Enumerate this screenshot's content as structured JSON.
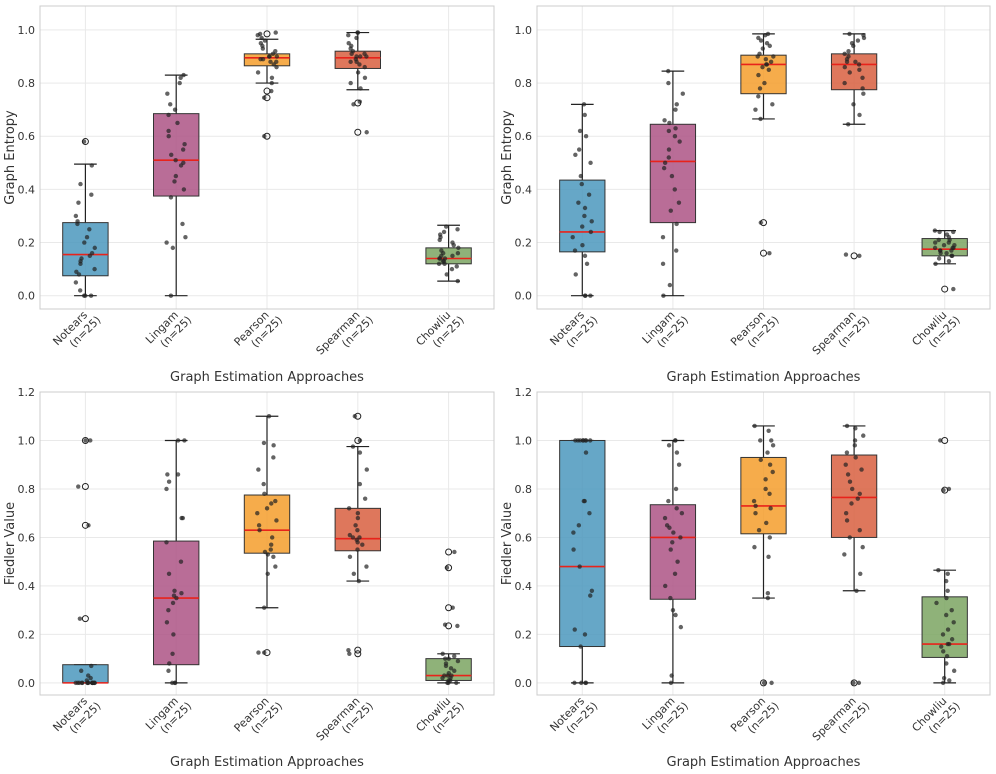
{
  "figure": {
    "colors": {
      "notears": "#4b98bd",
      "lingam": "#ad5485",
      "pearson": "#f59e2b",
      "spearman": "#d85f40",
      "chowliu": "#7ba561",
      "median": "#e8231b",
      "grid": "#e9e9e9",
      "frame": "#cccccc"
    }
  },
  "chart_data": [
    {
      "type": "box",
      "id": "top-left",
      "title": "",
      "xlabel": "Graph Estimation Approaches",
      "ylabel": "Graph Entropy",
      "ylim": [
        -0.05,
        1.09
      ],
      "yticks": [
        0.0,
        0.2,
        0.4,
        0.6,
        0.8,
        1.0
      ],
      "ytick_labels": [
        "0.0",
        "0.2",
        "0.4",
        "0.6",
        "0.8",
        "1.0"
      ],
      "categories": [
        {
          "name": "Notears",
          "n": "(n=25)",
          "q1": 0.075,
          "median": 0.155,
          "q3": 0.275,
          "whisker_low": 0.0,
          "whisker_high": 0.495,
          "outliers": [
            0.58
          ],
          "points": [
            0.0,
            0.0,
            0.02,
            0.05,
            0.08,
            0.09,
            0.1,
            0.12,
            0.13,
            0.14,
            0.15,
            0.16,
            0.18,
            0.2,
            0.22,
            0.25,
            0.27,
            0.28,
            0.3,
            0.35,
            0.38,
            0.42,
            0.49,
            0.0,
            0.58
          ]
        },
        {
          "name": "Lingam",
          "n": "(n=25)",
          "q1": 0.375,
          "median": 0.51,
          "q3": 0.685,
          "whisker_low": 0.0,
          "whisker_high": 0.83,
          "outliers": [],
          "points": [
            0.0,
            0.18,
            0.2,
            0.22,
            0.27,
            0.37,
            0.4,
            0.43,
            0.45,
            0.49,
            0.5,
            0.51,
            0.53,
            0.55,
            0.57,
            0.6,
            0.62,
            0.65,
            0.68,
            0.7,
            0.72,
            0.76,
            0.8,
            0.82,
            0.83
          ]
        },
        {
          "name": "Pearson",
          "n": "(n=25)",
          "q1": 0.865,
          "median": 0.895,
          "q3": 0.91,
          "whisker_low": 0.8,
          "whisker_high": 0.965,
          "outliers": [
            0.745,
            0.77,
            0.6,
            0.985
          ],
          "points": [
            0.6,
            0.745,
            0.77,
            0.8,
            0.82,
            0.84,
            0.86,
            0.87,
            0.88,
            0.88,
            0.89,
            0.89,
            0.9,
            0.9,
            0.9,
            0.91,
            0.92,
            0.93,
            0.94,
            0.95,
            0.96,
            0.97,
            0.98,
            0.985,
            0.99
          ]
        },
        {
          "name": "Spearman",
          "n": "(n=25)",
          "q1": 0.855,
          "median": 0.895,
          "q3": 0.92,
          "whisker_low": 0.775,
          "whisker_high": 0.99,
          "outliers": [
            0.725,
            0.615
          ],
          "points": [
            0.615,
            0.72,
            0.73,
            0.78,
            0.8,
            0.82,
            0.84,
            0.86,
            0.87,
            0.88,
            0.88,
            0.89,
            0.9,
            0.9,
            0.9,
            0.91,
            0.91,
            0.92,
            0.93,
            0.94,
            0.95,
            0.97,
            0.98,
            0.99,
            0.99
          ]
        },
        {
          "name": "Chowliu",
          "n": "(n=25)",
          "q1": 0.12,
          "median": 0.14,
          "q3": 0.18,
          "whisker_low": 0.055,
          "whisker_high": 0.265,
          "outliers": [],
          "points": [
            0.055,
            0.08,
            0.1,
            0.11,
            0.12,
            0.12,
            0.13,
            0.13,
            0.14,
            0.14,
            0.14,
            0.15,
            0.15,
            0.16,
            0.16,
            0.17,
            0.18,
            0.19,
            0.2,
            0.21,
            0.22,
            0.23,
            0.24,
            0.25,
            0.26
          ]
        }
      ]
    },
    {
      "type": "box",
      "id": "top-right",
      "title": "",
      "xlabel": "Graph Estimation Approaches",
      "ylabel": "Graph Entropy",
      "ylim": [
        -0.05,
        1.09
      ],
      "yticks": [
        0.0,
        0.2,
        0.4,
        0.6,
        0.8,
        1.0
      ],
      "ytick_labels": [
        "0.0",
        "0.2",
        "0.4",
        "0.6",
        "0.8",
        "1.0"
      ],
      "categories": [
        {
          "name": "Notears",
          "n": "(n=25)",
          "q1": 0.165,
          "median": 0.24,
          "q3": 0.435,
          "whisker_low": 0.0,
          "whisker_high": 0.72,
          "outliers": [],
          "points": [
            0.0,
            0.0,
            0.0,
            0.08,
            0.12,
            0.15,
            0.17,
            0.19,
            0.22,
            0.24,
            0.26,
            0.28,
            0.3,
            0.33,
            0.35,
            0.38,
            0.42,
            0.45,
            0.5,
            0.53,
            0.55,
            0.6,
            0.62,
            0.68,
            0.72
          ]
        },
        {
          "name": "Lingam",
          "n": "(n=25)",
          "q1": 0.275,
          "median": 0.505,
          "q3": 0.645,
          "whisker_low": 0.0,
          "whisker_high": 0.845,
          "outliers": [],
          "points": [
            0.0,
            0.04,
            0.12,
            0.17,
            0.22,
            0.27,
            0.32,
            0.35,
            0.4,
            0.45,
            0.48,
            0.5,
            0.52,
            0.55,
            0.58,
            0.6,
            0.62,
            0.63,
            0.65,
            0.66,
            0.7,
            0.72,
            0.76,
            0.8,
            0.845
          ]
        },
        {
          "name": "Pearson",
          "n": "(n=25)",
          "q1": 0.76,
          "median": 0.87,
          "q3": 0.905,
          "whisker_low": 0.665,
          "whisker_high": 0.985,
          "outliers": [
            0.275,
            0.16
          ],
          "points": [
            0.16,
            0.275,
            0.665,
            0.7,
            0.72,
            0.75,
            0.78,
            0.8,
            0.83,
            0.85,
            0.86,
            0.87,
            0.87,
            0.88,
            0.89,
            0.9,
            0.9,
            0.91,
            0.93,
            0.94,
            0.95,
            0.96,
            0.97,
            0.98,
            0.985
          ]
        },
        {
          "name": "Spearman",
          "n": "(n=25)",
          "q1": 0.775,
          "median": 0.87,
          "q3": 0.91,
          "whisker_low": 0.645,
          "whisker_high": 0.985,
          "outliers": [
            0.15
          ],
          "points": [
            0.15,
            0.155,
            0.645,
            0.68,
            0.72,
            0.76,
            0.78,
            0.8,
            0.82,
            0.84,
            0.85,
            0.86,
            0.87,
            0.88,
            0.88,
            0.89,
            0.9,
            0.91,
            0.92,
            0.94,
            0.95,
            0.96,
            0.97,
            0.98,
            0.985
          ]
        },
        {
          "name": "Chowliu",
          "n": "(n=25)",
          "q1": 0.15,
          "median": 0.175,
          "q3": 0.215,
          "whisker_low": 0.12,
          "whisker_high": 0.245,
          "outliers": [
            0.025
          ],
          "points": [
            0.025,
            0.12,
            0.13,
            0.14,
            0.15,
            0.15,
            0.16,
            0.16,
            0.17,
            0.17,
            0.17,
            0.18,
            0.18,
            0.18,
            0.19,
            0.19,
            0.2,
            0.2,
            0.21,
            0.21,
            0.22,
            0.23,
            0.24,
            0.24,
            0.245
          ]
        }
      ]
    },
    {
      "type": "box",
      "id": "bottom-left",
      "title": "",
      "xlabel": "Graph Estimation Approaches",
      "ylabel": "Fiedler Value",
      "ylim": [
        -0.05,
        1.2
      ],
      "yticks": [
        0.0,
        0.2,
        0.4,
        0.6,
        0.8,
        1.0,
        1.2
      ],
      "ytick_labels": [
        "0.0",
        "0.2",
        "0.4",
        "0.6",
        "0.8",
        "1.0",
        "1.2"
      ],
      "categories": [
        {
          "name": "Notears",
          "n": "(n=25)",
          "q1": 0.0,
          "median": 0.0,
          "q3": 0.075,
          "whisker_low": 0.0,
          "whisker_high": 0.075,
          "outliers": [
            1.0,
            0.81,
            0.65,
            0.265
          ],
          "points": [
            0.0,
            0.0,
            0.0,
            0.0,
            0.0,
            0.0,
            0.0,
            0.0,
            0.0,
            0.0,
            0.0,
            0.0,
            0.0,
            0.0,
            0.0,
            0.01,
            0.02,
            0.03,
            0.05,
            0.07,
            0.265,
            0.65,
            0.81,
            1.0,
            1.0
          ]
        },
        {
          "name": "Lingam",
          "n": "(n=25)",
          "q1": 0.075,
          "median": 0.35,
          "q3": 0.585,
          "whisker_low": 0.0,
          "whisker_high": 1.0,
          "outliers": [],
          "points": [
            0.0,
            0.0,
            0.0,
            0.05,
            0.08,
            0.12,
            0.2,
            0.25,
            0.3,
            0.33,
            0.35,
            0.36,
            0.37,
            0.38,
            0.45,
            0.5,
            0.58,
            0.68,
            0.68,
            0.8,
            0.83,
            0.86,
            0.86,
            1.0,
            1.0
          ]
        },
        {
          "name": "Pearson",
          "n": "(n=25)",
          "q1": 0.535,
          "median": 0.63,
          "q3": 0.775,
          "whisker_low": 0.31,
          "whisker_high": 1.1,
          "outliers": [
            0.125
          ],
          "points": [
            0.125,
            0.125,
            0.31,
            0.45,
            0.48,
            0.52,
            0.53,
            0.54,
            0.55,
            0.57,
            0.6,
            0.63,
            0.65,
            0.67,
            0.7,
            0.72,
            0.74,
            0.75,
            0.78,
            0.82,
            0.88,
            0.93,
            0.98,
            0.99,
            1.1
          ]
        },
        {
          "name": "Spearman",
          "n": "(n=25)",
          "q1": 0.545,
          "median": 0.595,
          "q3": 0.72,
          "whisker_low": 0.42,
          "whisker_high": 0.975,
          "outliers": [
            0.135,
            0.12,
            1.0,
            1.1
          ],
          "points": [
            0.12,
            0.135,
            0.42,
            0.45,
            0.48,
            0.52,
            0.55,
            0.57,
            0.58,
            0.59,
            0.6,
            0.6,
            0.61,
            0.63,
            0.65,
            0.68,
            0.7,
            0.72,
            0.76,
            0.82,
            0.88,
            0.95,
            0.975,
            1.0,
            1.1
          ]
        },
        {
          "name": "Chowliu",
          "n": "(n=25)",
          "q1": 0.01,
          "median": 0.03,
          "q3": 0.1,
          "whisker_low": 0.0,
          "whisker_high": 0.12,
          "outliers": [
            0.54,
            0.475,
            0.31,
            0.235
          ],
          "points": [
            0.0,
            0.0,
            0.0,
            0.01,
            0.01,
            0.02,
            0.02,
            0.03,
            0.03,
            0.03,
            0.04,
            0.05,
            0.06,
            0.07,
            0.08,
            0.09,
            0.1,
            0.1,
            0.11,
            0.12,
            0.235,
            0.24,
            0.31,
            0.475,
            0.54
          ]
        }
      ]
    },
    {
      "type": "box",
      "id": "bottom-right",
      "title": "",
      "xlabel": "Graph Estimation Approaches",
      "ylabel": "Fiedler Value",
      "ylim": [
        -0.05,
        1.2
      ],
      "yticks": [
        0.0,
        0.2,
        0.4,
        0.6,
        0.8,
        1.0,
        1.2
      ],
      "ytick_labels": [
        "0.0",
        "0.2",
        "0.4",
        "0.6",
        "0.8",
        "1.0",
        "1.2"
      ],
      "categories": [
        {
          "name": "Notears",
          "n": "(n=25)",
          "q1": 0.15,
          "median": 0.48,
          "q3": 1.0,
          "whisker_low": 0.0,
          "whisker_high": 1.0,
          "outliers": [],
          "points": [
            0.0,
            0.0,
            0.0,
            0.0,
            0.15,
            0.2,
            0.22,
            0.36,
            0.38,
            0.48,
            0.55,
            0.62,
            0.65,
            0.7,
            0.75,
            0.75,
            0.95,
            1.0,
            1.0,
            1.0,
            1.0,
            1.0,
            1.0,
            1.0,
            1.0
          ]
        },
        {
          "name": "Lingam",
          "n": "(n=25)",
          "q1": 0.345,
          "median": 0.6,
          "q3": 0.735,
          "whisker_low": 0.0,
          "whisker_high": 1.0,
          "outliers": [],
          "points": [
            0.0,
            0.03,
            0.23,
            0.28,
            0.3,
            0.35,
            0.4,
            0.45,
            0.5,
            0.55,
            0.58,
            0.6,
            0.62,
            0.64,
            0.65,
            0.68,
            0.7,
            0.72,
            0.75,
            0.8,
            0.9,
            0.95,
            0.98,
            1.0,
            1.0
          ]
        },
        {
          "name": "Pearson",
          "n": "(n=25)",
          "q1": 0.615,
          "median": 0.73,
          "q3": 0.93,
          "whisker_low": 0.35,
          "whisker_high": 1.06,
          "outliers": [
            0.0
          ],
          "points": [
            0.0,
            0.0,
            0.35,
            0.37,
            0.52,
            0.56,
            0.6,
            0.63,
            0.66,
            0.7,
            0.72,
            0.73,
            0.75,
            0.78,
            0.8,
            0.84,
            0.87,
            0.9,
            0.92,
            0.95,
            0.98,
            1.0,
            1.0,
            1.04,
            1.06
          ]
        },
        {
          "name": "Spearman",
          "n": "(n=25)",
          "q1": 0.6,
          "median": 0.765,
          "q3": 0.94,
          "whisker_low": 0.38,
          "whisker_high": 1.06,
          "outliers": [
            0.0
          ],
          "points": [
            0.0,
            0.0,
            0.38,
            0.45,
            0.53,
            0.56,
            0.6,
            0.63,
            0.67,
            0.7,
            0.74,
            0.76,
            0.78,
            0.8,
            0.83,
            0.86,
            0.88,
            0.9,
            0.93,
            0.95,
            0.98,
            1.0,
            1.02,
            1.05,
            1.06
          ]
        },
        {
          "name": "Chowliu",
          "n": "(n=25)",
          "q1": 0.105,
          "median": 0.16,
          "q3": 0.355,
          "whisker_low": 0.0,
          "whisker_high": 0.465,
          "outliers": [
            1.0,
            0.795
          ],
          "points": [
            0.0,
            0.01,
            0.02,
            0.05,
            0.08,
            0.11,
            0.13,
            0.15,
            0.16,
            0.16,
            0.18,
            0.2,
            0.22,
            0.25,
            0.28,
            0.3,
            0.33,
            0.35,
            0.38,
            0.42,
            0.45,
            0.465,
            0.795,
            0.8,
            1.0
          ]
        }
      ]
    }
  ]
}
